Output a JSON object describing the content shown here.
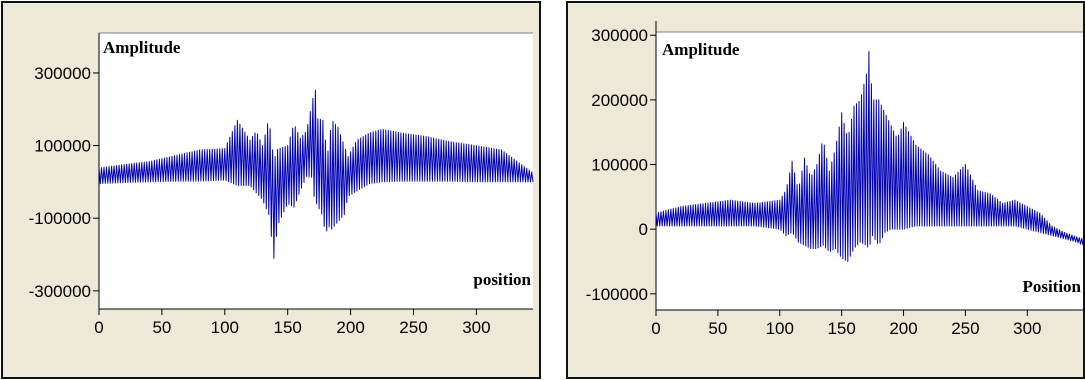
{
  "chart_data": [
    {
      "type": "line",
      "ylabel": "Amplitude",
      "xlabel": "position",
      "xlim": [
        0,
        345
      ],
      "ylim": [
        -350000,
        410000
      ],
      "x_ticks": [
        0,
        50,
        100,
        150,
        200,
        250,
        300
      ],
      "y_ticks": [
        300000,
        100000,
        -100000,
        -300000
      ],
      "x_tick_labels": [
        "0",
        "50",
        "100",
        "150",
        "200",
        "250",
        "300"
      ],
      "y_tick_labels": [
        "300000",
        "100000",
        "-100000",
        "-300000"
      ],
      "grid": false,
      "line_color": "#0000b4",
      "plot_background": "#ffffff",
      "series": [
        {
          "x": [
            0,
            20,
            40,
            60,
            80,
            100,
            110,
            120,
            125,
            130,
            135,
            139,
            142,
            150,
            155,
            160,
            165,
            170,
            171,
            173,
            178,
            180,
            182,
            185,
            190,
            195,
            198,
            205,
            215,
            225,
            240,
            260,
            280,
            300,
            320,
            335,
            345
          ],
          "peaks": [
            38000,
            48000,
            56000,
            72000,
            88000,
            92000,
            170000,
            115000,
            140000,
            100000,
            175000,
            60000,
            90000,
            100000,
            160000,
            120000,
            140000,
            230000,
            330000,
            175000,
            170000,
            115000,
            85000,
            170000,
            150000,
            100000,
            70000,
            115000,
            135000,
            145000,
            135000,
            125000,
            110000,
            100000,
            88000,
            50000,
            25000
          ],
          "troughs": [
            -5000,
            -2000,
            0,
            2000,
            2000,
            5000,
            -10000,
            -10000,
            -30000,
            -50000,
            -90000,
            -210000,
            -120000,
            -60000,
            -70000,
            -25000,
            15000,
            12000,
            -40000,
            -60000,
            -95000,
            -150000,
            -120000,
            -130000,
            -110000,
            -90000,
            -40000,
            -25000,
            -5000,
            0,
            2000,
            2000,
            2000,
            0,
            0,
            0,
            0
          ]
        }
      ]
    },
    {
      "type": "line",
      "ylabel": "Amplitude",
      "xlabel": "Position",
      "xlim": [
        0,
        345
      ],
      "ylim": [
        -125000,
        305000
      ],
      "x_ticks": [
        0,
        50,
        100,
        150,
        200,
        250,
        300
      ],
      "y_ticks": [
        300000,
        200000,
        100000,
        0,
        -100000
      ],
      "x_tick_labels": [
        "0",
        "50",
        "100",
        "150",
        "200",
        "250",
        "300"
      ],
      "y_tick_labels": [
        "300000",
        "200000",
        "100000",
        "0",
        "-100000"
      ],
      "grid": false,
      "line_color": "#0000b4",
      "plot_background": "#ffffff",
      "series": [
        {
          "x": [
            0,
            20,
            40,
            60,
            80,
            100,
            105,
            110,
            115,
            120,
            125,
            130,
            135,
            140,
            145,
            150,
            155,
            160,
            165,
            170,
            172,
            175,
            180,
            185,
            190,
            195,
            200,
            210,
            220,
            230,
            240,
            250,
            260,
            270,
            280,
            290,
            300,
            310,
            320,
            330,
            340,
            345
          ],
          "peaks": [
            25000,
            35000,
            40000,
            45000,
            40000,
            45000,
            60000,
            105000,
            60000,
            110000,
            80000,
            100000,
            140000,
            90000,
            125000,
            180000,
            140000,
            190000,
            200000,
            240000,
            275000,
            200000,
            200000,
            180000,
            160000,
            140000,
            165000,
            130000,
            115000,
            90000,
            80000,
            100000,
            60000,
            55000,
            40000,
            45000,
            35000,
            25000,
            5000,
            -5000,
            -12000,
            -15000
          ],
          "troughs": [
            5000,
            5000,
            5000,
            5000,
            5000,
            0,
            -10000,
            -5000,
            -20000,
            -25000,
            -30000,
            -30000,
            -25000,
            -35000,
            -30000,
            -45000,
            -50000,
            -30000,
            -20000,
            -25000,
            -30000,
            -10000,
            -25000,
            -5000,
            0,
            0,
            0,
            5000,
            5000,
            5000,
            5000,
            5000,
            5000,
            5000,
            5000,
            5000,
            0,
            -5000,
            -10000,
            -15000,
            -20000,
            -25000
          ]
        }
      ]
    }
  ]
}
